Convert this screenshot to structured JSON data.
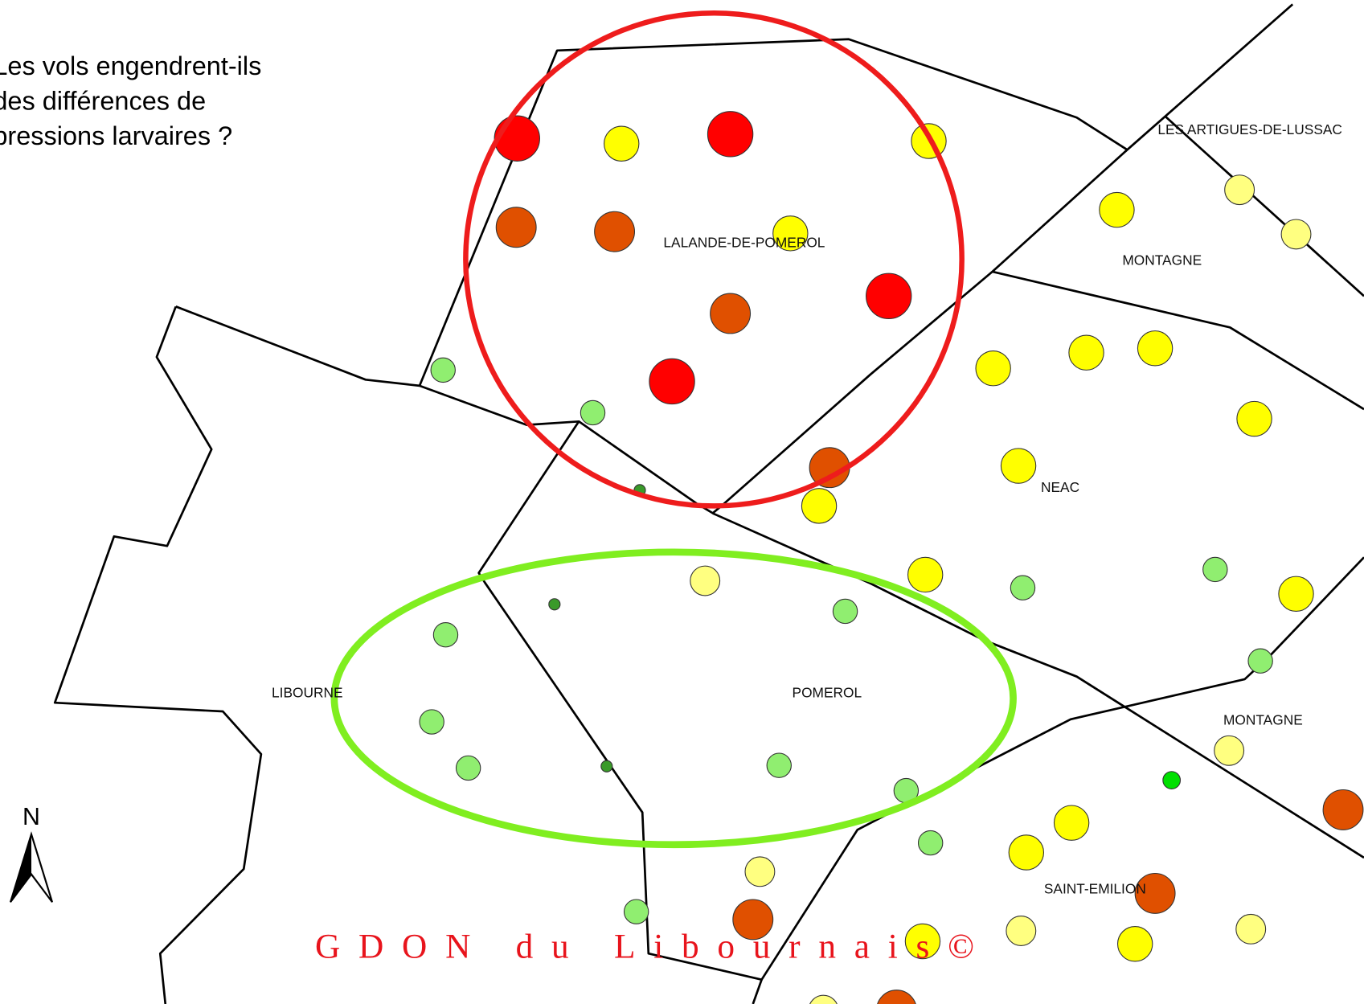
{
  "title_lines": [
    "Les vols engendrent-ils",
    "des différences de",
    "pressions larvaires ?"
  ],
  "labels": [
    "LALANDE-DE-POMEROL",
    "LES ARTIGUES-DE-LUSSAC",
    "MONTAGNE",
    "NEAC",
    "LIBOURNE",
    "POMEROL",
    "MONTAGNE",
    "SAINT-EMILION"
  ],
  "north": "N",
  "credit": "GDON du Libournais©"
}
